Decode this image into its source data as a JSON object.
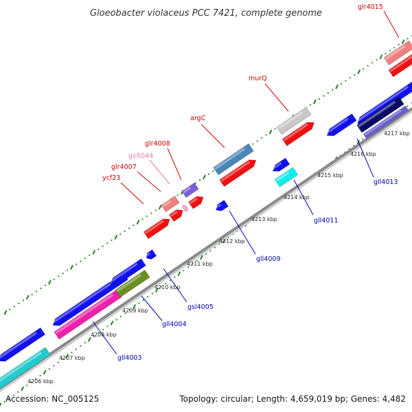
{
  "title": "Gloeobacter violaceus PCC 7421, complete genome",
  "footer": {
    "accession": "Accession: NC_005125",
    "summary": "Topology: circular; Length: 4,659,019 bp; Genes: 4,482"
  },
  "colors": {
    "backbone": "#8a8a8a",
    "tick_dot": "#2a8a2a",
    "tick_major": "#1f7a1f",
    "label_plus": "#cc0000",
    "label_minus": "#0000aa",
    "label_rna": "#e67aa6"
  },
  "scale": {
    "ticks": [
      "4206 kbp",
      "4207 kbp",
      "4208 kbp",
      "4209 kbp",
      "4210 kbp",
      "4211 kbp",
      "4212 kbp",
      "4213 kbp",
      "4214 kbp",
      "4215 kbp",
      "4216 kbp",
      "4217 kbp"
    ]
  },
  "labels": {
    "glr4015": "glr4015",
    "murQ": "murQ",
    "argC": "argC",
    "glr4008": "glr4008",
    "gvit044": "gvit044",
    "glr4007": "glr4007",
    "ycf23": "ycf23",
    "gll4013": "gll4013",
    "gll4011": "gll4011",
    "gll4009": "gll4009",
    "gsl4005": "gsl4005",
    "gll4004": "gll4004",
    "gll4003": "gll4003"
  }
}
